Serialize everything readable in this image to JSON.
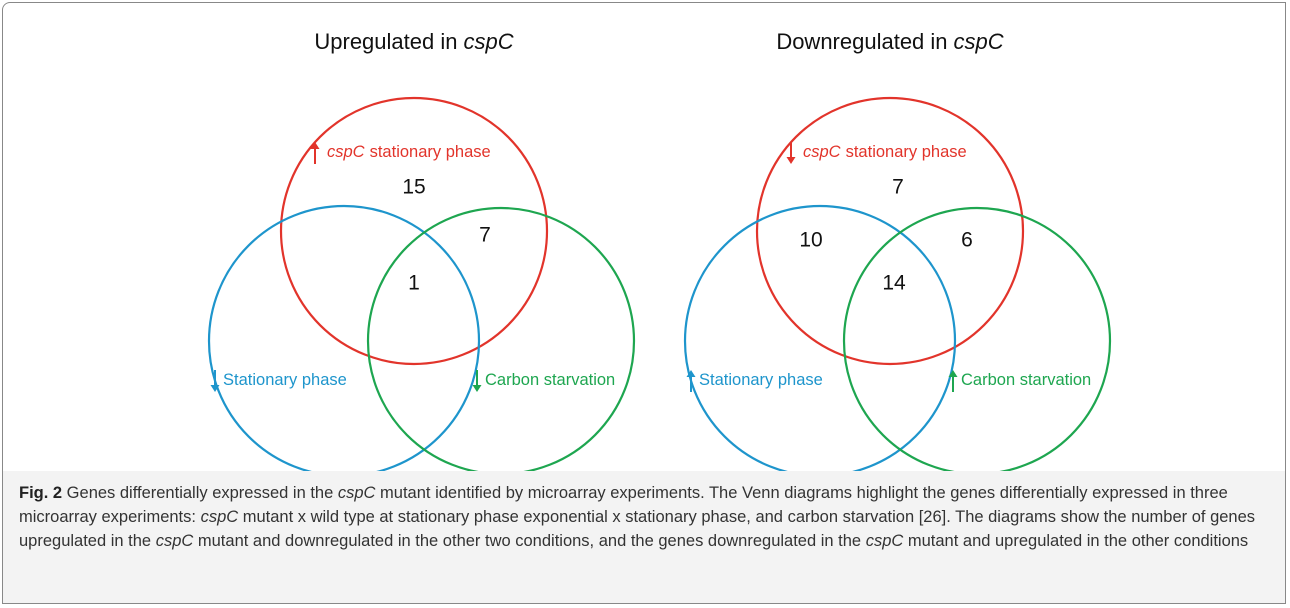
{
  "diagrams": [
    {
      "title": {
        "text": "Upregulated in",
        "italic": "cspC"
      },
      "sets": [
        {
          "italic": "cspC",
          "text": "stationary phase",
          "arrow": "up",
          "color": "#e2342b"
        },
        {
          "text": "Stationary phase",
          "arrow": "down",
          "color": "#1e95cc"
        },
        {
          "text": "Carbon starvation",
          "arrow": "down",
          "color": "#1ea650"
        }
      ],
      "regions": [
        15,
        7,
        1
      ]
    },
    {
      "title": {
        "text": "Downregulated in",
        "italic": "cspC"
      },
      "sets": [
        {
          "italic": "cspC",
          "text": "stationary phase",
          "arrow": "down",
          "color": "#e2342b"
        },
        {
          "text": "Stationary phase",
          "arrow": "up",
          "color": "#1e95cc"
        },
        {
          "text": "Carbon starvation",
          "arrow": "up",
          "color": "#1ea650"
        }
      ],
      "regions": [
        7,
        10,
        6,
        14
      ]
    }
  ],
  "caption": [
    {
      "text": "Fig. 2",
      "style": "bold"
    },
    {
      "text": " Genes differentially expressed in the ",
      "style": "normal"
    },
    {
      "text": "cspC",
      "style": "italic"
    },
    {
      "text": " mutant identified by microarray experiments. The Venn diagrams highlight the genes differentially expressed in three microarray experiments: ",
      "style": "normal"
    },
    {
      "text": "cspC",
      "style": "italic"
    },
    {
      "text": " mutant x wild type at stationary phase exponential x stationary phase, and carbon starvation [26]. The diagrams show the number of genes upregulated in the ",
      "style": "normal"
    },
    {
      "text": "cspC",
      "style": "italic"
    },
    {
      "text": " mutant and downregulated in the other two conditions, and the genes downregulated in the ",
      "style": "normal"
    },
    {
      "text": "cspC",
      "style": "italic"
    },
    {
      "text": " mutant and upregulated in the other conditions",
      "style": "normal"
    }
  ]
}
